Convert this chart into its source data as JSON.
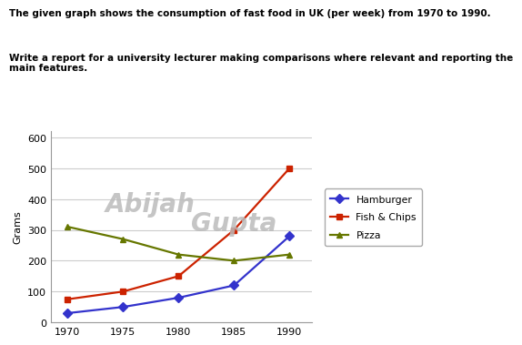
{
  "title_line1": "The given graph shows the consumption of fast food in UK (per week) from 1970 to 1990.",
  "title_line2": "Write a report for a university lecturer making comparisons where relevant and reporting the\nmain features.",
  "years": [
    1970,
    1975,
    1980,
    1985,
    1990
  ],
  "hamburger": [
    30,
    50,
    80,
    120,
    280
  ],
  "fish_chips": [
    75,
    100,
    150,
    300,
    500
  ],
  "pizza": [
    310,
    270,
    220,
    200,
    220
  ],
  "hamburger_color": "#3333CC",
  "fish_chips_color": "#CC2200",
  "pizza_color": "#667700",
  "ylabel": "Grams",
  "ylim": [
    0,
    620
  ],
  "yticks": [
    0,
    100,
    200,
    300,
    400,
    500,
    600
  ],
  "xlim": [
    1968.5,
    1992
  ],
  "xticks": [
    1970,
    1975,
    1980,
    1985,
    1990
  ],
  "legend_labels": [
    "Hamburger",
    "Fish & Chips",
    "Pizza"
  ],
  "background_color": "#ffffff",
  "watermark_text1": "Abijah",
  "watermark_text2": "Gupta",
  "watermark_color": "#bbbbbb"
}
